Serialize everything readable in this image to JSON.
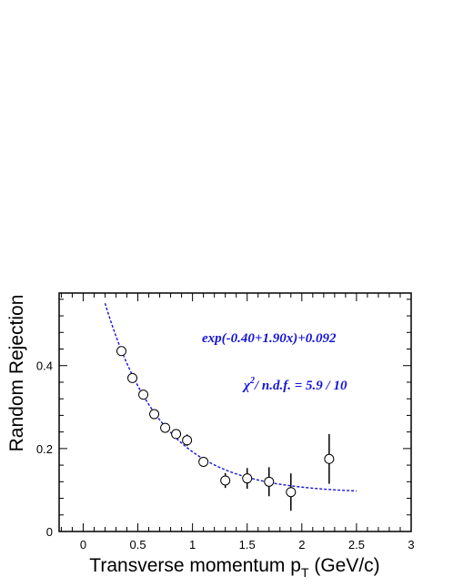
{
  "chart_data": {
    "type": "scatter",
    "xlabel": "Transverse momentum p",
    "xlabel_sub": "T",
    "xlabel_unit": " (GeV/c)",
    "ylabel": "Random Rejection",
    "xlim": [
      -0.22,
      3.0
    ],
    "ylim": [
      0,
      0.575
    ],
    "x_ticks": [
      0,
      0.5,
      1,
      1.5,
      2,
      2.5,
      3
    ],
    "x_tick_labels": [
      "0",
      "0.5",
      "1",
      "1.5",
      "2",
      "2.5",
      "3"
    ],
    "y_ticks": [
      0,
      0.2,
      0.4
    ],
    "y_tick_labels": [
      "0",
      "0.2",
      "0.4"
    ],
    "grid": false,
    "series": [
      {
        "marker": "open-circle",
        "x": [
          0.35,
          0.45,
          0.55,
          0.65,
          0.75,
          0.85,
          0.95,
          1.1,
          1.3,
          1.5,
          1.7,
          1.9,
          2.25
        ],
        "y": [
          0.435,
          0.37,
          0.33,
          0.283,
          0.25,
          0.235,
          0.22,
          0.168,
          0.123,
          0.128,
          0.12,
          0.095,
          0.175
        ],
        "yerr": [
          0.01,
          0.01,
          0.01,
          0.01,
          0.01,
          0.01,
          0.014,
          0.012,
          0.018,
          0.025,
          0.035,
          0.045,
          0.06
        ]
      }
    ],
    "fit": {
      "formula_label": "exp(-0.40+1.90x)+0.092",
      "chi2_label_prefix": "/ n.d.f. = 5.9 / 10",
      "chi_symbol": "χ",
      "chi_sup": "2",
      "x_range": [
        0.2,
        2.5
      ],
      "style": "dashed",
      "color": "#1515d8"
    }
  }
}
